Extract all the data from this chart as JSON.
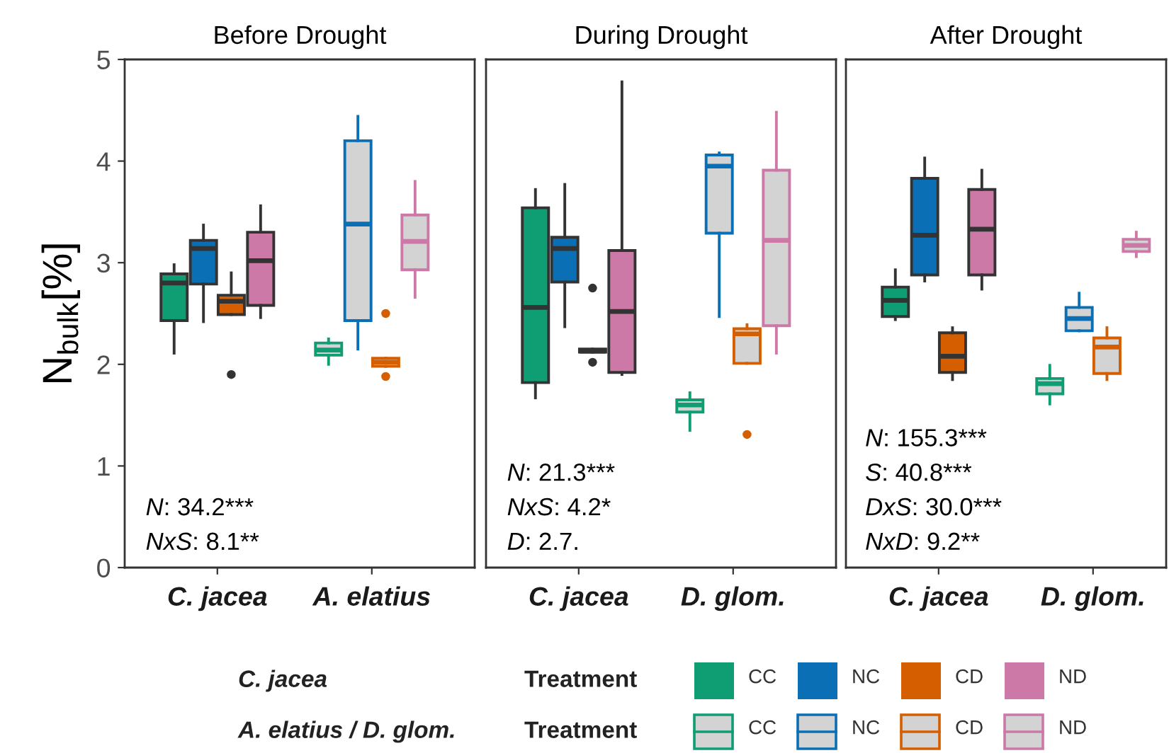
{
  "chart_data": [
    {
      "type": "box",
      "title": "Before Drought",
      "ylabel": "N$_{bulk}$[%]",
      "categories": [
        "C. jacea",
        "A. elatius"
      ],
      "ylim": [
        0,
        5
      ],
      "yticks": [
        0,
        1,
        2,
        3,
        4,
        5
      ],
      "grid": false,
      "legend": "bottom",
      "legend_title": "Treatment",
      "annotations": [
        "N: 34.2***",
        "NxS: 8.1**"
      ],
      "series": [
        {
          "name": "CC",
          "color": "#0f9d74",
          "boxes": [
            {
              "low": 2.11,
              "q1": 2.43,
              "median": 2.8,
              "q3": 2.89,
              "high": 2.98
            },
            {
              "low": 2.0,
              "q1": 2.09,
              "median": 2.14,
              "q3": 2.21,
              "high": 2.25
            }
          ]
        },
        {
          "name": "NC",
          "color": "#0a6fb5",
          "boxes": [
            {
              "low": 2.42,
              "q1": 2.79,
              "median": 3.14,
              "q3": 3.22,
              "high": 3.37
            },
            {
              "low": 2.15,
              "q1": 2.43,
              "median": 3.38,
              "q3": 4.2,
              "high": 4.44
            }
          ]
        },
        {
          "name": "CD",
          "color": "#d55e00",
          "boxes": [
            {
              "low": 2.49,
              "q1": 2.49,
              "median": 2.62,
              "q3": 2.68,
              "high": 2.9,
              "outliers": [
                1.9
              ]
            },
            {
              "low": 1.98,
              "q1": 1.98,
              "median": 2.02,
              "q3": 2.06,
              "high": 2.06,
              "outliers": [
                2.5,
                1.88
              ]
            }
          ]
        },
        {
          "name": "ND",
          "color": "#cc79a7",
          "boxes": [
            {
              "low": 2.46,
              "q1": 2.58,
              "median": 3.02,
              "q3": 3.3,
              "high": 3.56
            },
            {
              "low": 2.66,
              "q1": 2.93,
              "median": 3.21,
              "q3": 3.47,
              "high": 3.8
            }
          ]
        }
      ]
    },
    {
      "type": "box",
      "title": "During Drought",
      "categories": [
        "C. jacea",
        "D. glom."
      ],
      "ylim": [
        0,
        5
      ],
      "yticks": [
        0,
        1,
        2,
        3,
        4,
        5
      ],
      "tick_labels": "x",
      "grid": false,
      "legend": "bottom",
      "legend_title": "Treatment",
      "annotations": [
        "N: 21.3***",
        "NxS: 4.2*",
        "D: 2.7."
      ],
      "series": [
        {
          "name": "CC",
          "color": "#0f9d74",
          "boxes": [
            {
              "low": 1.67,
              "q1": 1.82,
              "median": 2.56,
              "q3": 3.54,
              "high": 3.72
            },
            {
              "low": 1.35,
              "q1": 1.53,
              "median": 1.6,
              "q3": 1.65,
              "high": 1.72
            }
          ]
        },
        {
          "name": "NC",
          "color": "#0a6fb5",
          "boxes": [
            {
              "low": 2.37,
              "q1": 2.81,
              "median": 3.14,
              "q3": 3.25,
              "high": 3.77
            },
            {
              "low": 2.47,
              "q1": 3.29,
              "median": 3.95,
              "q3": 4.06,
              "high": 4.08
            }
          ]
        },
        {
          "name": "CD",
          "color": "#d55e00",
          "boxes": [
            {
              "low": 2.12,
              "q1": 2.12,
              "median": 2.13,
              "q3": 2.15,
              "high": 2.15,
              "outliers": [
                2.75,
                2.02
              ]
            },
            {
              "low": 2.01,
              "q1": 2.01,
              "median": 2.3,
              "q3": 2.35,
              "high": 2.39,
              "outliers": [
                1.31
              ]
            }
          ]
        },
        {
          "name": "ND",
          "color": "#cc79a7",
          "boxes": [
            {
              "low": 1.9,
              "q1": 1.92,
              "median": 2.52,
              "q3": 3.12,
              "high": 4.78
            },
            {
              "low": 2.11,
              "q1": 2.38,
              "median": 3.22,
              "q3": 3.91,
              "high": 4.48
            }
          ]
        }
      ]
    },
    {
      "type": "box",
      "title": "After Drought",
      "categories": [
        "C. jacea",
        "D. glom."
      ],
      "ylim": [
        0,
        5
      ],
      "yticks": [
        0,
        1,
        2,
        3,
        4,
        5
      ],
      "tick_labels": "x",
      "grid": false,
      "annotations": [
        "N: 155.3***",
        "S: 40.8***",
        "DxS: 30.0***",
        "NxD: 9.2**"
      ],
      "series": [
        {
          "color": "#0f9d74",
          "boxes": [
            {
              "low": 2.44,
              "q1": 2.47,
              "median": 2.63,
              "q3": 2.76,
              "high": 2.93
            },
            {
              "low": 1.61,
              "q1": 1.71,
              "median": 1.81,
              "q3": 1.86,
              "high": 1.99
            }
          ]
        },
        {
          "color": "#0a6fb5",
          "boxes": [
            {
              "low": 2.82,
              "q1": 2.88,
              "median": 3.27,
              "q3": 3.83,
              "high": 4.03
            },
            {
              "low": 2.33,
              "q1": 2.33,
              "median": 2.45,
              "q3": 2.56,
              "high": 2.7
            }
          ]
        },
        {
          "color": "#d55e00",
          "boxes": [
            {
              "low": 1.85,
              "q1": 1.92,
              "median": 2.08,
              "q3": 2.31,
              "high": 2.36
            },
            {
              "low": 1.85,
              "q1": 1.91,
              "median": 2.17,
              "q3": 2.26,
              "high": 2.36
            }
          ]
        },
        {
          "color": "#cc79a7",
          "boxes": [
            {
              "low": 2.74,
              "q1": 2.88,
              "median": 3.33,
              "q3": 3.72,
              "high": 3.91
            },
            {
              "low": 3.06,
              "q1": 3.11,
              "median": 3.17,
              "q3": 3.23,
              "high": 3.3
            }
          ]
        }
      ]
    },
    {
      "type": "other",
      "annotations": [
        "C. jacea",
        "A. elatius / D. glom."
      ]
    }
  ]
}
